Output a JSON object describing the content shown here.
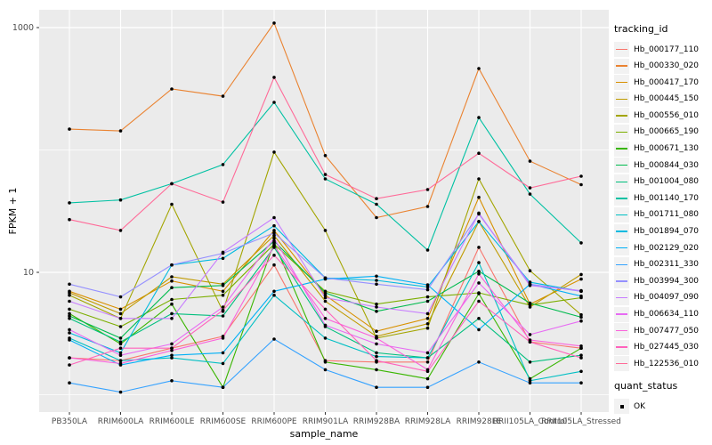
{
  "chart_data": {
    "type": "line",
    "title": "",
    "xlabel": "sample_name",
    "ylabel": "FPKM + 1",
    "y_scale": "log10",
    "y_ticks": [
      10,
      1000
    ],
    "y_minor_gridlines": [
      1,
      100
    ],
    "ylim": [
      0.72,
      1400
    ],
    "grid": true,
    "panel_background": "#EBEBEB",
    "gridline_color": "#FFFFFF",
    "tick_label_color": "#4D4D4D",
    "point_color": "#000000",
    "categories": [
      "PB350LA",
      "RRIM600LA",
      "RRIM600LE",
      "RRIM600SE",
      "RRIM600PE",
      "RRIM901LA",
      "RRIM928BA",
      "RRIM928LA",
      "RRIM928LE",
      "RRII105LA_Control",
      "RRII105LA_Stressed"
    ],
    "legend_position": "right",
    "series": [
      {
        "name": "Hb_000177_110",
        "color": "#F8766D",
        "values": [
          2.0,
          1.9,
          2.4,
          3.0,
          11.5,
          1.9,
          1.85,
          1.85,
          16,
          2.7,
          2.4
        ]
      },
      {
        "name": "Hb_000330_020",
        "color": "#EA8331",
        "values": [
          148,
          143,
          315,
          275,
          1090,
          90,
          28,
          34.5,
          463,
          81,
          52
        ]
      },
      {
        "name": "Hb_000417_170",
        "color": "#D89000",
        "values": [
          7.0,
          5.0,
          8.5,
          7.0,
          22,
          6.5,
          3.3,
          4.2,
          41,
          5.5,
          8.8
        ]
      },
      {
        "name": "Hb_000445_150",
        "color": "#C09B00",
        "values": [
          6.8,
          4.6,
          9.2,
          8.0,
          20,
          5.8,
          3.0,
          3.8,
          26,
          5.2,
          9.6
        ]
      },
      {
        "name": "Hb_000556_010",
        "color": "#A3A500",
        "values": [
          6.5,
          4.2,
          36,
          4.8,
          96,
          22,
          2.9,
          3.5,
          58,
          10.3,
          4.5
        ]
      },
      {
        "name": "Hb_000665_190",
        "color": "#7CAE00",
        "values": [
          5.0,
          3.6,
          6.0,
          6.5,
          17,
          7.0,
          5.5,
          6.3,
          6.8,
          5.4,
          6.2
        ]
      },
      {
        "name": "Hb_000671_130",
        "color": "#39B600",
        "values": [
          4.6,
          2.6,
          5.5,
          1.15,
          17.5,
          1.85,
          1.6,
          1.35,
          6.7,
          1.35,
          2.4
        ]
      },
      {
        "name": "Hb_000844_030",
        "color": "#00BB4E",
        "values": [
          4.4,
          2.9,
          7.5,
          7.8,
          18,
          6.8,
          4.8,
          5.8,
          10.2,
          5.6,
          4.3
        ]
      },
      {
        "name": "Hb_001004_080",
        "color": "#00BF7D",
        "values": [
          4.2,
          2.7,
          4.6,
          4.4,
          16,
          3.6,
          2.2,
          2.0,
          4.2,
          1.85,
          2.1
        ]
      },
      {
        "name": "Hb_001140_170",
        "color": "#00C1A3",
        "values": [
          37,
          39,
          53,
          76,
          245,
          58,
          36,
          15.2,
          184,
          43.6,
          17.4
        ]
      },
      {
        "name": "Hb_001711_080",
        "color": "#00BFC4",
        "values": [
          2.9,
          1.9,
          2.0,
          1.8,
          6.5,
          2.9,
          2.05,
          2.0,
          12,
          1.3,
          1.55
        ]
      },
      {
        "name": "Hb_001894_070",
        "color": "#00BAE0",
        "values": [
          3.2,
          2.2,
          11.5,
          13,
          24,
          9.0,
          8.6,
          7.6,
          26,
          8.3,
          7.0
        ]
      },
      {
        "name": "Hb_002129_020",
        "color": "#00B0F6",
        "values": [
          2.8,
          1.75,
          2.1,
          2.2,
          7.0,
          8.8,
          9.3,
          7.9,
          3.4,
          8.0,
          6.4
        ]
      },
      {
        "name": "Hb_002311_330",
        "color": "#35A2FF",
        "values": [
          1.25,
          1.05,
          1.3,
          1.15,
          2.85,
          1.6,
          1.15,
          1.15,
          1.85,
          1.25,
          1.25
        ]
      },
      {
        "name": "Hb_003994_300",
        "color": "#9590FF",
        "values": [
          8.0,
          6.3,
          11.5,
          14.3,
          21,
          9.0,
          8.0,
          7.2,
          30,
          8.0,
          7.0
        ]
      },
      {
        "name": "Hb_004097_090",
        "color": "#C77CFF",
        "values": [
          5.8,
          4.2,
          4.2,
          14.6,
          28,
          6.2,
          5.2,
          4.6,
          30.5,
          7.8,
          7.1
        ]
      },
      {
        "name": "Hb_006634_110",
        "color": "#E76BF3",
        "values": [
          3.4,
          2.1,
          2.6,
          5.2,
          19,
          3.7,
          2.6,
          2.2,
          8.2,
          3.1,
          4.0
        ]
      },
      {
        "name": "Hb_007477_050",
        "color": "#FA62DB",
        "values": [
          2.0,
          1.8,
          2.3,
          2.9,
          16.5,
          4.2,
          2.9,
          1.6,
          9.7,
          2.8,
          2.5
        ]
      },
      {
        "name": "Hb_027445_030",
        "color": "#FF62BC",
        "values": [
          1.75,
          2.4,
          2.4,
          4.9,
          13.8,
          5.0,
          1.9,
          1.55,
          5.8,
          2.7,
          2.0
        ]
      },
      {
        "name": "Hb_122536_010",
        "color": "#FF6A98",
        "values": [
          27,
          22,
          53,
          37.5,
          392,
          63,
          40,
          47.5,
          94,
          49,
          61
        ]
      }
    ]
  },
  "axes": {
    "x_title": "sample_name",
    "y_title": "FPKM + 1"
  },
  "legend": {
    "tracking_title": "tracking_id",
    "quant_title": "quant_status",
    "quant_items": [
      {
        "label": "OK",
        "marker": "black-square"
      }
    ]
  }
}
